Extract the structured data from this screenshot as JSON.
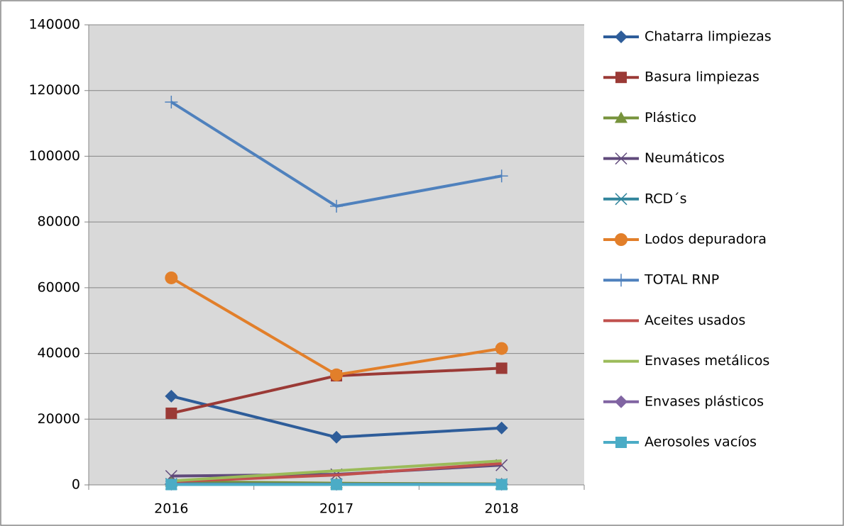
{
  "chart_data": {
    "type": "line",
    "categories": [
      "2016",
      "2017",
      "2018"
    ],
    "ylim": [
      0,
      140000
    ],
    "yticks": [
      0,
      20000,
      40000,
      60000,
      80000,
      100000,
      120000,
      140000
    ],
    "grid": true,
    "legend": "right",
    "series": [
      {
        "name": "Chatarra limpiezas",
        "color": "#2e5d9a",
        "marker": "diamond",
        "values": [
          27000,
          14500,
          17300
        ]
      },
      {
        "name": "Basura limpiezas",
        "color": "#9b3a36",
        "marker": "square",
        "values": [
          21800,
          33200,
          35500
        ]
      },
      {
        "name": "Plástico",
        "color": "#77933c",
        "marker": "triangle",
        "values": [
          1000,
          500,
          300
        ]
      },
      {
        "name": "Neumáticos",
        "color": "#604a7b",
        "marker": "x",
        "values": [
          2700,
          3200,
          6000
        ]
      },
      {
        "name": "RCD´s",
        "color": "#31859c",
        "marker": "star",
        "values": [
          300,
          200,
          200
        ]
      },
      {
        "name": "Lodos depuradora",
        "color": "#e27f2a",
        "marker": "circle",
        "values": [
          63000,
          33500,
          41500
        ]
      },
      {
        "name": "TOTAL RNP",
        "color": "#4f81bd",
        "marker": "plus",
        "values": [
          116500,
          84800,
          94000
        ]
      },
      {
        "name": "Aceites usados",
        "color": "#c0504d",
        "marker": "none",
        "values": [
          1000,
          3000,
          6500
        ]
      },
      {
        "name": "Envases metálicos",
        "color": "#9bbb59",
        "marker": "none",
        "values": [
          1200,
          4300,
          7300
        ]
      },
      {
        "name": "Envases plásticos",
        "color": "#8064a2",
        "marker": "diamond",
        "values": [
          200,
          150,
          150
        ]
      },
      {
        "name": "Aerosoles vacíos",
        "color": "#4bacc6",
        "marker": "square",
        "values": [
          100,
          100,
          100
        ]
      }
    ]
  }
}
